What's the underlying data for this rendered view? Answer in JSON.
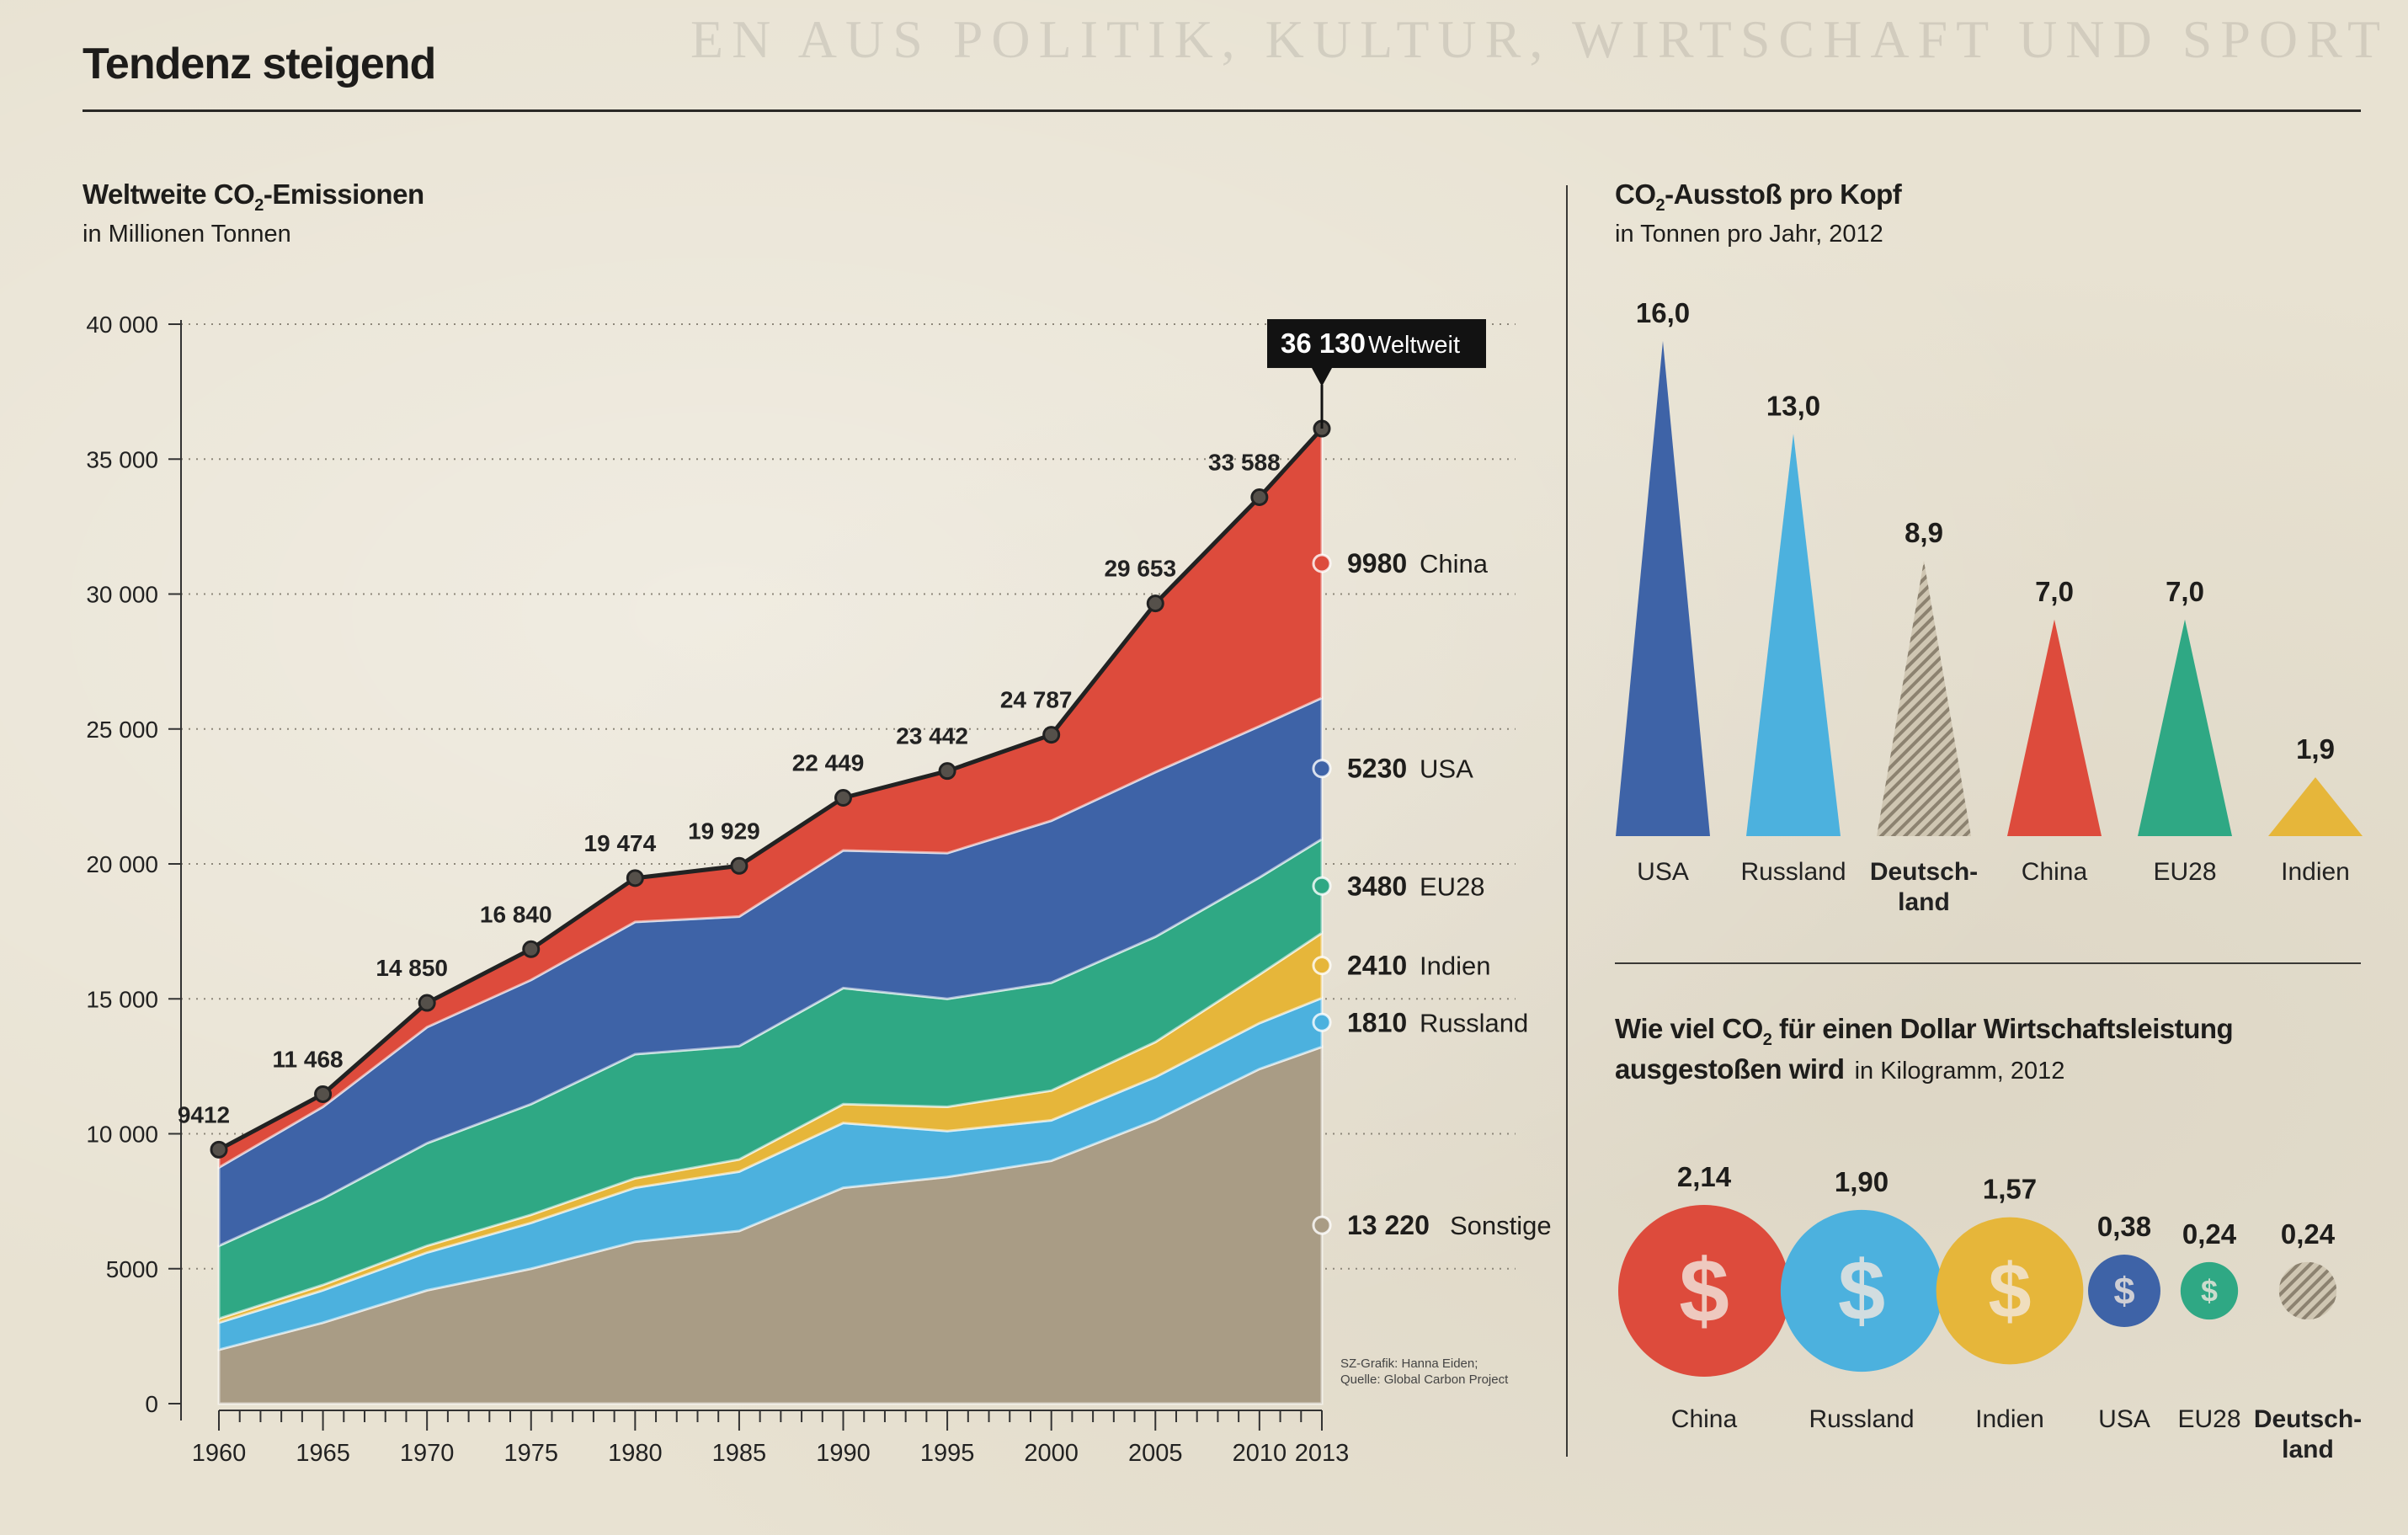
{
  "page": {
    "title": "Tendenz steigend",
    "ghost_text": "EN AUS POLITIK, KULTUR, WIRTSCHAFT UND SPORT"
  },
  "left_panel": {
    "title_a": "Weltweite CO",
    "title_sub": "2",
    "title_b": "-Emissionen",
    "subtitle": "in Millionen Tonnen"
  },
  "right_top": {
    "title_a": "CO",
    "title_sub": "2",
    "title_b": "-Ausstoß pro Kopf",
    "subtitle": "in Tonnen pro Jahr, 2012"
  },
  "right_bottom": {
    "title_a": "Wie viel CO",
    "title_sub": "2",
    "title_b": " für einen Dollar Wirtschaftsleistung",
    "title_c": "ausgestoßen wird",
    "subtitle": "in Kilogramm, 2012"
  },
  "credit": {
    "line1": "SZ-Grafik: Hanna Eiden;",
    "line2": "Quelle: Global Carbon Project"
  },
  "colors": {
    "sonstige": "#a99c85",
    "russland": "#4cb1de",
    "indien": "#e6b63a",
    "eu28": "#2fa884",
    "usa": "#3e63a7",
    "china": "#dd4b3c",
    "deutschland": "#b0a690",
    "outline": "#222222",
    "dollar": "#f3e9e0"
  },
  "chart_data": [
    {
      "type": "area",
      "title": "Weltweite CO2-Emissionen",
      "subtitle": "in Millionen Tonnen",
      "x": [
        1960,
        1965,
        1970,
        1975,
        1980,
        1985,
        1990,
        1995,
        2000,
        2005,
        2010,
        2013
      ],
      "x_ticks": [
        "1960",
        "1965",
        "1970",
        "1975",
        "1980",
        "1985",
        "1990",
        "1995",
        "2000",
        "2005",
        "2010",
        "2013"
      ],
      "y_ticks": [
        "0",
        "5000",
        "10 000",
        "15 000",
        "20 000",
        "25 000",
        "30 000",
        "35 000",
        "40 000"
      ],
      "ylim": [
        0,
        40000
      ],
      "series": [
        {
          "name": "Sonstige",
          "key": "sonstige",
          "values": [
            2000,
            3000,
            4200,
            5000,
            6000,
            6400,
            8000,
            8400,
            9000,
            10500,
            12400,
            13220
          ]
        },
        {
          "name": "Russland",
          "key": "russland",
          "values": [
            1000,
            1200,
            1400,
            1700,
            2000,
            2200,
            2400,
            1700,
            1500,
            1600,
            1700,
            1810
          ]
        },
        {
          "name": "Indien",
          "key": "indien",
          "values": [
            150,
            200,
            250,
            300,
            350,
            450,
            700,
            900,
            1100,
            1300,
            1800,
            2410
          ]
        },
        {
          "name": "EU28",
          "key": "eu28",
          "values": [
            2700,
            3200,
            3800,
            4100,
            4600,
            4200,
            4300,
            4000,
            4000,
            3900,
            3600,
            3480
          ]
        },
        {
          "name": "USA",
          "key": "usa",
          "values": [
            2900,
            3400,
            4300,
            4600,
            4900,
            4800,
            5100,
            5400,
            6000,
            6100,
            5600,
            5230
          ]
        },
        {
          "name": "China",
          "key": "china",
          "values": [
            662,
            468,
            900,
            1140,
            1624,
            1879,
            1949,
            3042,
            3187,
            6253,
            8488,
            9980
          ]
        }
      ],
      "total_name": "Weltweit",
      "total_values": [
        9412,
        11468,
        14850,
        16840,
        19474,
        19929,
        22449,
        23442,
        24787,
        29653,
        33588,
        36130
      ],
      "total_labels": [
        "9412",
        "11 468",
        "14 850",
        "16 840",
        "19 474",
        "19 929",
        "22 449",
        "23 442",
        "24 787",
        "29 653",
        "33 588",
        "36 130"
      ],
      "end_labels": [
        {
          "value": "9980",
          "name": "China"
        },
        {
          "value": "5230",
          "name": "USA"
        },
        {
          "value": "3480",
          "name": "EU28"
        },
        {
          "value": "2410",
          "name": "Indien"
        },
        {
          "value": "1810",
          "name": "Russland"
        },
        {
          "value": "13 220",
          "name": "Sonstige"
        }
      ],
      "end_callout": {
        "value": "36 130",
        "name": "Weltweit"
      },
      "grid": true
    },
    {
      "type": "bar",
      "title": "CO2-Ausstoß pro Kopf",
      "subtitle": "in Tonnen pro Jahr, 2012",
      "categories": [
        "USA",
        "Russland",
        "Deutschland",
        "China",
        "EU28",
        "Indien"
      ],
      "display_categories": [
        "USA",
        "Russland",
        "Deutsch-\nland",
        "China",
        "EU28",
        "Indien"
      ],
      "values": [
        16.0,
        13.0,
        8.9,
        7.0,
        7.0,
        1.9
      ],
      "value_labels": [
        "16,0",
        "13,0",
        "8,9",
        "7,0",
        "7,0",
        "1,9"
      ],
      "color_keys": [
        "usa",
        "russland",
        "deutschland",
        "china",
        "eu28",
        "indien"
      ],
      "bold": [
        false,
        false,
        true,
        false,
        false,
        false
      ]
    },
    {
      "type": "scatter",
      "title": "Wie viel CO2 für einen Dollar Wirtschaftsleistung ausgestoßen wird",
      "subtitle": "in Kilogramm, 2012",
      "categories": [
        "China",
        "Russland",
        "Indien",
        "USA",
        "EU28",
        "Deutschland"
      ],
      "display_categories": [
        "China",
        "Russland",
        "Indien",
        "USA",
        "EU28",
        "Deutsch-\nland"
      ],
      "values": [
        2.14,
        1.9,
        1.57,
        0.38,
        0.24,
        0.24
      ],
      "value_labels": [
        "2,14",
        "1,90",
        "1,57",
        "0,38",
        "0,24",
        "0,24"
      ],
      "color_keys": [
        "china",
        "russland",
        "indien",
        "usa",
        "eu28",
        "deutschland"
      ],
      "bold": [
        false,
        false,
        false,
        false,
        false,
        true
      ]
    }
  ]
}
